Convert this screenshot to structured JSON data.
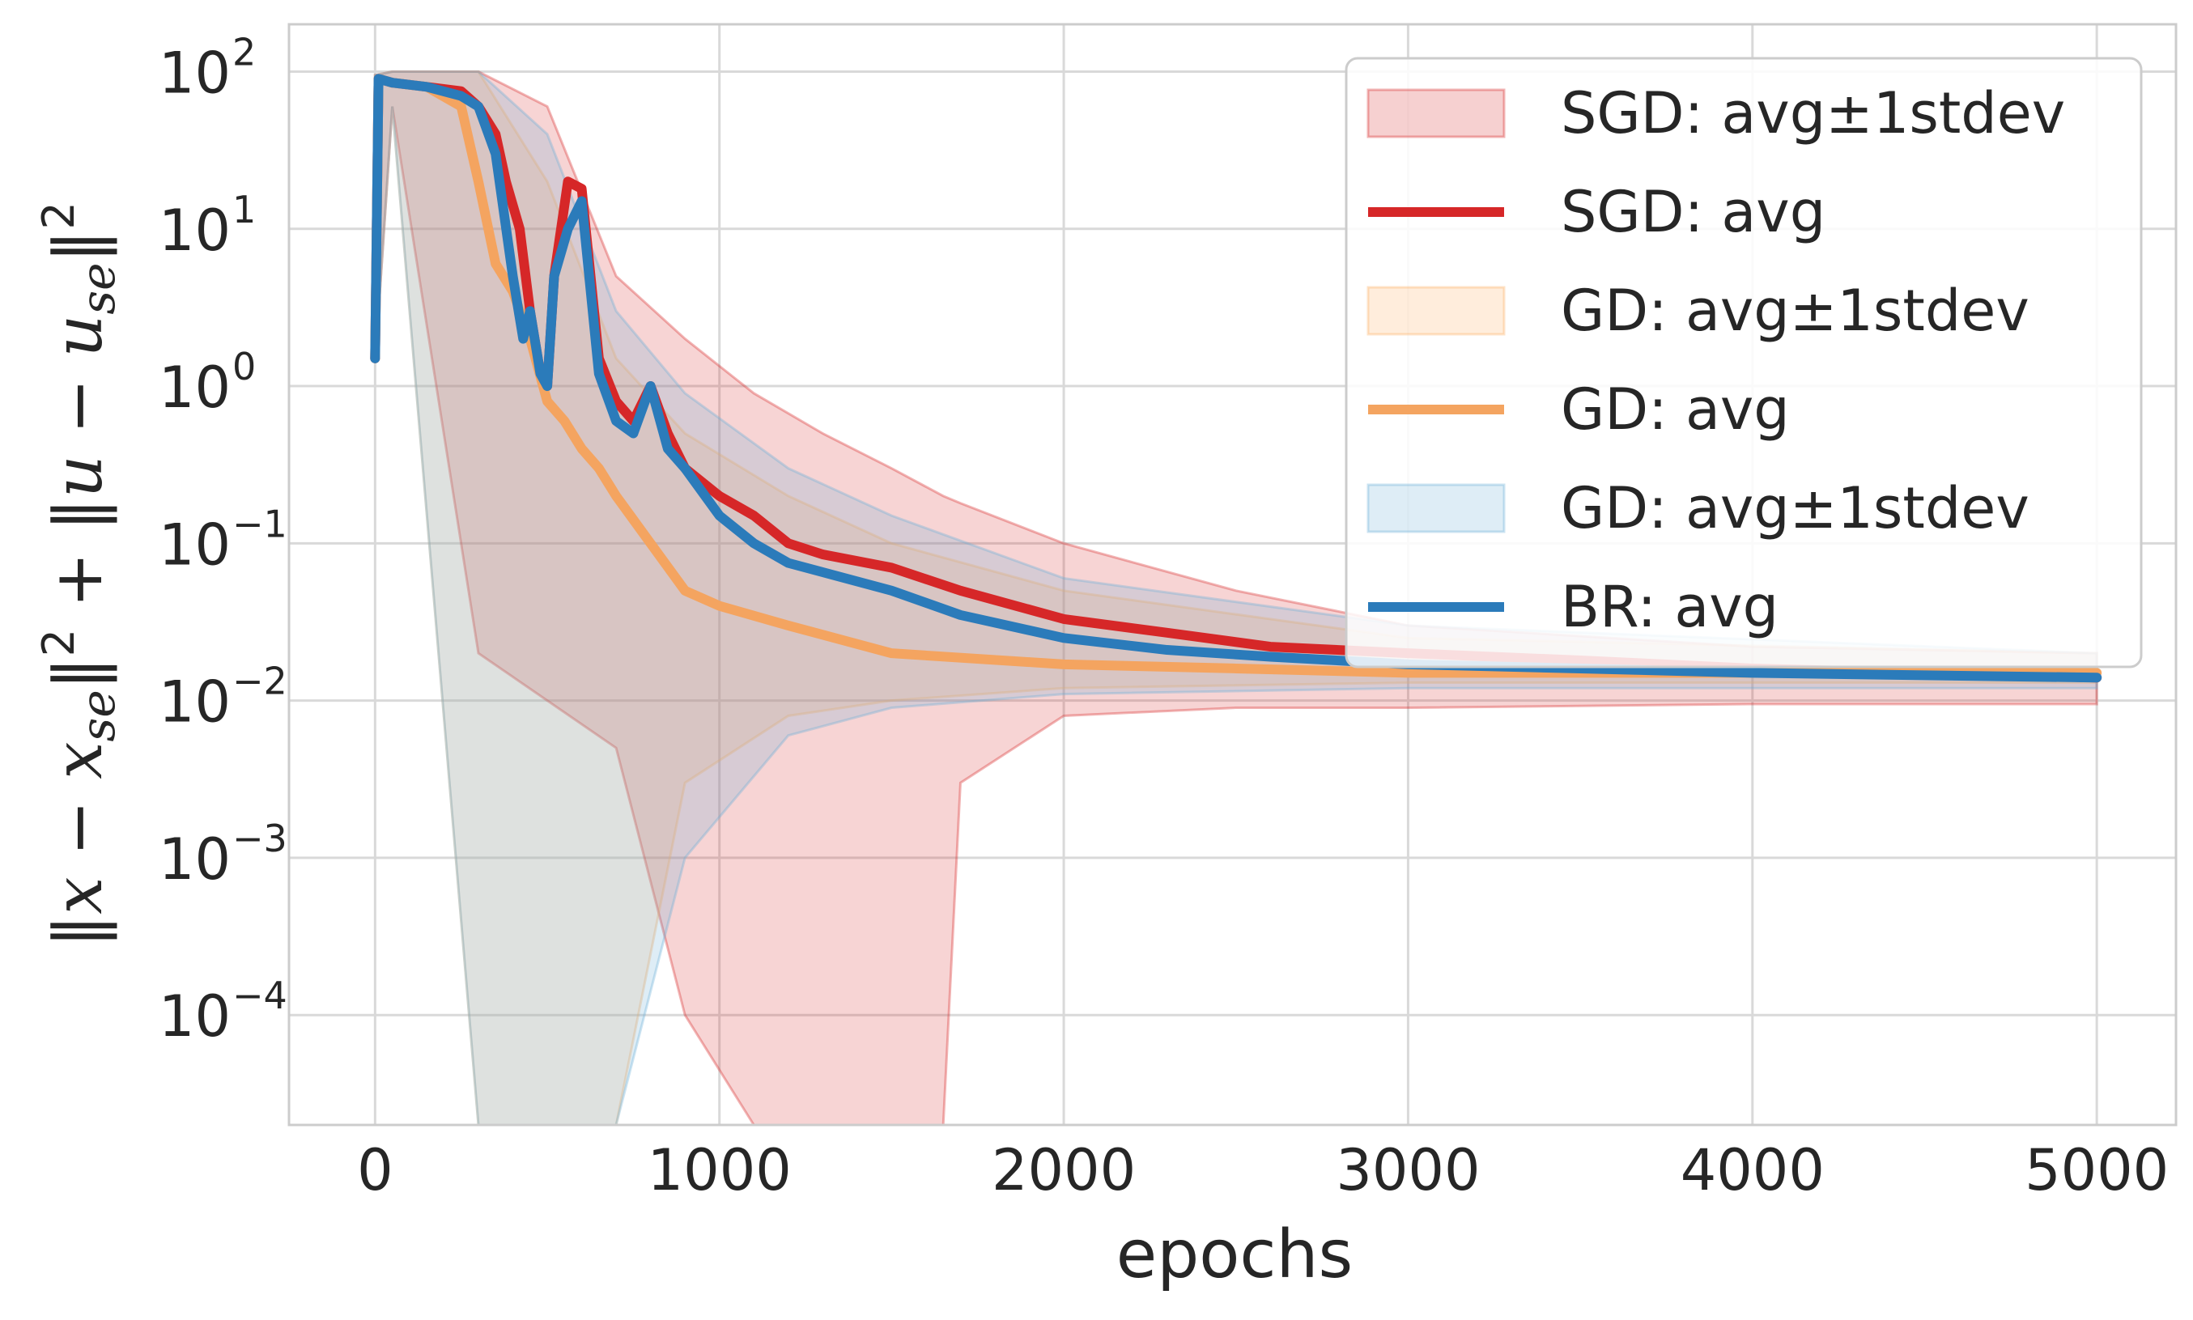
{
  "chart_data": {
    "type": "line",
    "xlabel": "epochs",
    "ylabel": "‖x − x_se‖² + ‖u − u_se‖²",
    "yscale": "log",
    "xlim": [
      -250,
      5230
    ],
    "ylim": [
      2e-05,
      200
    ],
    "xticks": [
      0,
      1000,
      2000,
      3000,
      4000,
      5000
    ],
    "xtick_labels": [
      "0",
      "1000",
      "2000",
      "3000",
      "4000",
      "5000"
    ],
    "yticks": [
      0.0001,
      0.001,
      0.01,
      0.1,
      1,
      10,
      100
    ],
    "ytick_labels": [
      {
        "base": "10",
        "exp": "−4"
      },
      {
        "base": "10",
        "exp": "−3"
      },
      {
        "base": "10",
        "exp": "−2"
      },
      {
        "base": "10",
        "exp": "−1"
      },
      {
        "base": "10",
        "exp": "0"
      },
      {
        "base": "10",
        "exp": "1"
      },
      {
        "base": "10",
        "exp": "2"
      }
    ],
    "grid": true,
    "legend_position": "top-right",
    "legend": [
      {
        "label": "SGD: avg±1stdev",
        "kind": "band",
        "color": "#d62728"
      },
      {
        "label": "SGD: avg",
        "kind": "line",
        "color": "#d62728"
      },
      {
        "label": "GD: avg±1stdev",
        "kind": "band",
        "color": "#fdae61"
      },
      {
        "label": "GD: avg",
        "kind": "line",
        "color": "#f4a460"
      },
      {
        "label": "GD: avg±1stdev",
        "kind": "band",
        "color": "#6baed6"
      },
      {
        "label": "BR: avg",
        "kind": "line",
        "color": "#2b7bba"
      }
    ],
    "series": [
      {
        "name": "SGD: avg",
        "color": "#d62728",
        "x": [
          0,
          10,
          50,
          150,
          250,
          300,
          350,
          380,
          420,
          450,
          480,
          500,
          520,
          560,
          600,
          650,
          700,
          750,
          800,
          850,
          900,
          1000,
          1100,
          1200,
          1300,
          1500,
          1700,
          2000,
          2300,
          2600,
          3000,
          3500,
          4000,
          4500,
          5000
        ],
        "y": [
          1.5,
          90,
          85,
          80,
          75,
          60,
          40,
          20,
          10,
          3,
          1.2,
          1.0,
          5,
          20,
          18,
          1.5,
          0.8,
          0.6,
          1.0,
          0.5,
          0.3,
          0.2,
          0.15,
          0.1,
          0.085,
          0.07,
          0.05,
          0.033,
          0.027,
          0.022,
          0.02,
          0.018,
          0.016,
          0.015,
          0.014
        ]
      },
      {
        "name": "GD: avg",
        "color": "#f4a460",
        "x": [
          0,
          10,
          50,
          150,
          250,
          300,
          350,
          400,
          450,
          500,
          550,
          600,
          650,
          700,
          800,
          900,
          1000,
          1200,
          1500,
          2000,
          2500,
          3000,
          3500,
          4000,
          5000
        ],
        "y": [
          1.5,
          90,
          85,
          80,
          60,
          20,
          6,
          4,
          2,
          0.8,
          0.6,
          0.4,
          0.3,
          0.2,
          0.1,
          0.05,
          0.04,
          0.03,
          0.02,
          0.017,
          0.016,
          0.015,
          0.015,
          0.015,
          0.015
        ]
      },
      {
        "name": "BR: avg",
        "color": "#2b7bba",
        "x": [
          0,
          10,
          50,
          150,
          250,
          300,
          350,
          400,
          430,
          450,
          480,
          500,
          520,
          560,
          600,
          650,
          700,
          750,
          800,
          850,
          900,
          1000,
          1100,
          1200,
          1500,
          1700,
          2000,
          2300,
          2600,
          3000,
          3500,
          4000,
          5000
        ],
        "y": [
          1.5,
          90,
          85,
          80,
          70,
          60,
          30,
          5,
          2,
          3,
          1.2,
          1.0,
          5,
          10,
          15,
          1.2,
          0.6,
          0.5,
          1.0,
          0.4,
          0.3,
          0.15,
          0.1,
          0.075,
          0.05,
          0.035,
          0.025,
          0.021,
          0.019,
          0.017,
          0.016,
          0.015,
          0.014
        ]
      }
    ],
    "bands": [
      {
        "name": "SGD: avg±1stdev",
        "color": "#d62728",
        "x": [
          0,
          50,
          300,
          500,
          700,
          900,
          1100,
          1300,
          1500,
          1650,
          1700,
          2000,
          2500,
          3000,
          4000,
          5000
        ],
        "upper": [
          95,
          100,
          100,
          60,
          5,
          2,
          0.9,
          0.5,
          0.3,
          0.2,
          0.18,
          0.1,
          0.05,
          0.03,
          0.022,
          0.02
        ],
        "lower": [
          1.4,
          60,
          0.02,
          0.01,
          0.005,
          0.0001,
          2e-05,
          2e-05,
          2e-05,
          2e-05,
          0.003,
          0.008,
          0.009,
          0.009,
          0.0095,
          0.0095
        ]
      },
      {
        "name": "GD: avg±1stdev",
        "color": "#fdae61",
        "x": [
          0,
          50,
          300,
          500,
          700,
          900,
          1200,
          1500,
          2000,
          3000,
          5000
        ],
        "upper": [
          95,
          100,
          100,
          20,
          1.5,
          0.5,
          0.2,
          0.1,
          0.05,
          0.025,
          0.02
        ],
        "lower": [
          1.4,
          60,
          2e-05,
          2e-05,
          2e-05,
          0.003,
          0.008,
          0.01,
          0.012,
          0.013,
          0.013
        ]
      },
      {
        "name": "GD: avg±1stdev",
        "color": "#6baed6",
        "x": [
          0,
          50,
          300,
          500,
          700,
          900,
          1200,
          1500,
          2000,
          3000,
          5000
        ],
        "upper": [
          95,
          100,
          100,
          40,
          3,
          0.9,
          0.3,
          0.15,
          0.06,
          0.03,
          0.02
        ],
        "lower": [
          1.4,
          60,
          2e-05,
          2e-05,
          2e-05,
          0.001,
          0.006,
          0.009,
          0.011,
          0.012,
          0.012
        ]
      }
    ]
  }
}
